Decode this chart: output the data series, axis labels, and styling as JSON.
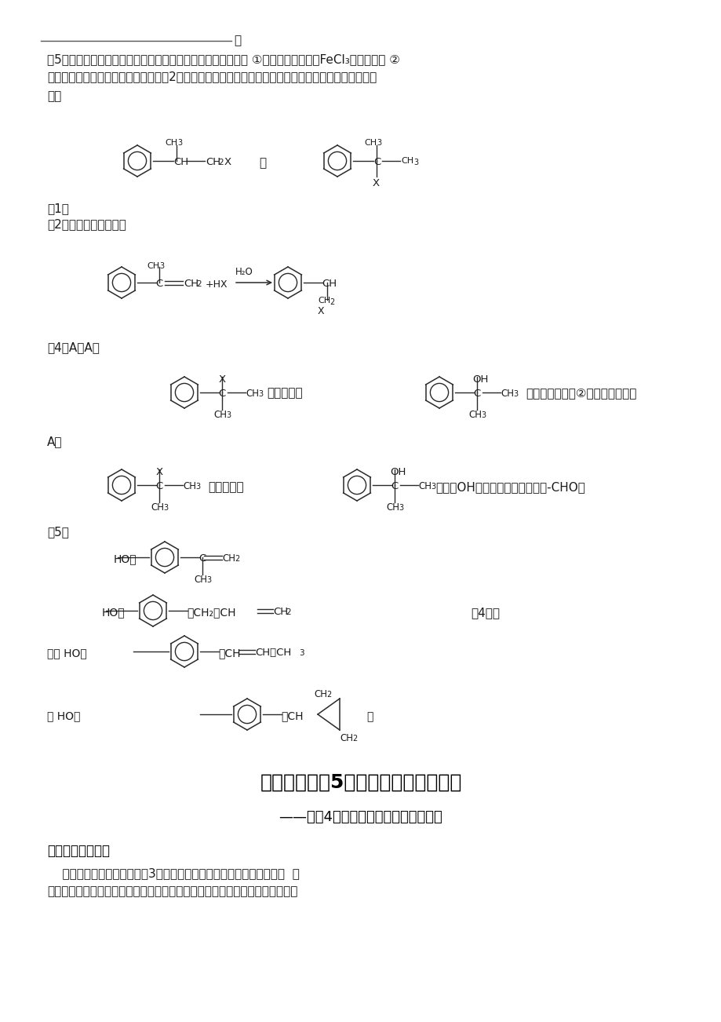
{
  "bg_color": "#f5f5f0",
  "page_bg": "#ffffff",
  "text_color": "#1a1a1a",
  "line_color": "#333333",
  "title_text": "高二化学选修5（有机）阶段教学分析",
  "subtitle_text": "——专题4（烃的衍生物）阶段教学分析",
  "section1_title": "一、本专题的地位",
  "section1_body1": "    本专题在知识结构上是专题3《常见的烃》的延续，特别是《第一单元  卤",
  "section1_body2": "代烃》它本身不仅属烃的衍生物，而且是烃与烃的衍生物之间的关键衔接点。本",
  "q5_line1": "（5）这种香料具有多种同分异构体，其中某种物质有下列性质 ①该物质的水溶液遇FeCl₃溶液呈紫色 ②",
  "q5_line2": "分子中有苯环，且苯环上的一溴代物有2种。写出符合上述两条件的物质可能的结构简式。（只写两种）",
  "ans_label": "答案",
  "q1_label": "（1）",
  "q2_label": "（2）加成；消去；水解",
  "q4_label1": "（4）A中A中",
  "q4_mid1": "的水解产物",
  "q4_right1": "不能经氧化反应②而得到产品（或",
  "q4_label2": "A中",
  "q4_mid2": "的水解产物",
  "q4_right2": "中的－OH不在链端，不能氧化成-CHO）",
  "q5_label": "（5）",
  "score": "（4分）",
  "huo1": "（或 HO－",
  "huo2": "或 HO－"
}
